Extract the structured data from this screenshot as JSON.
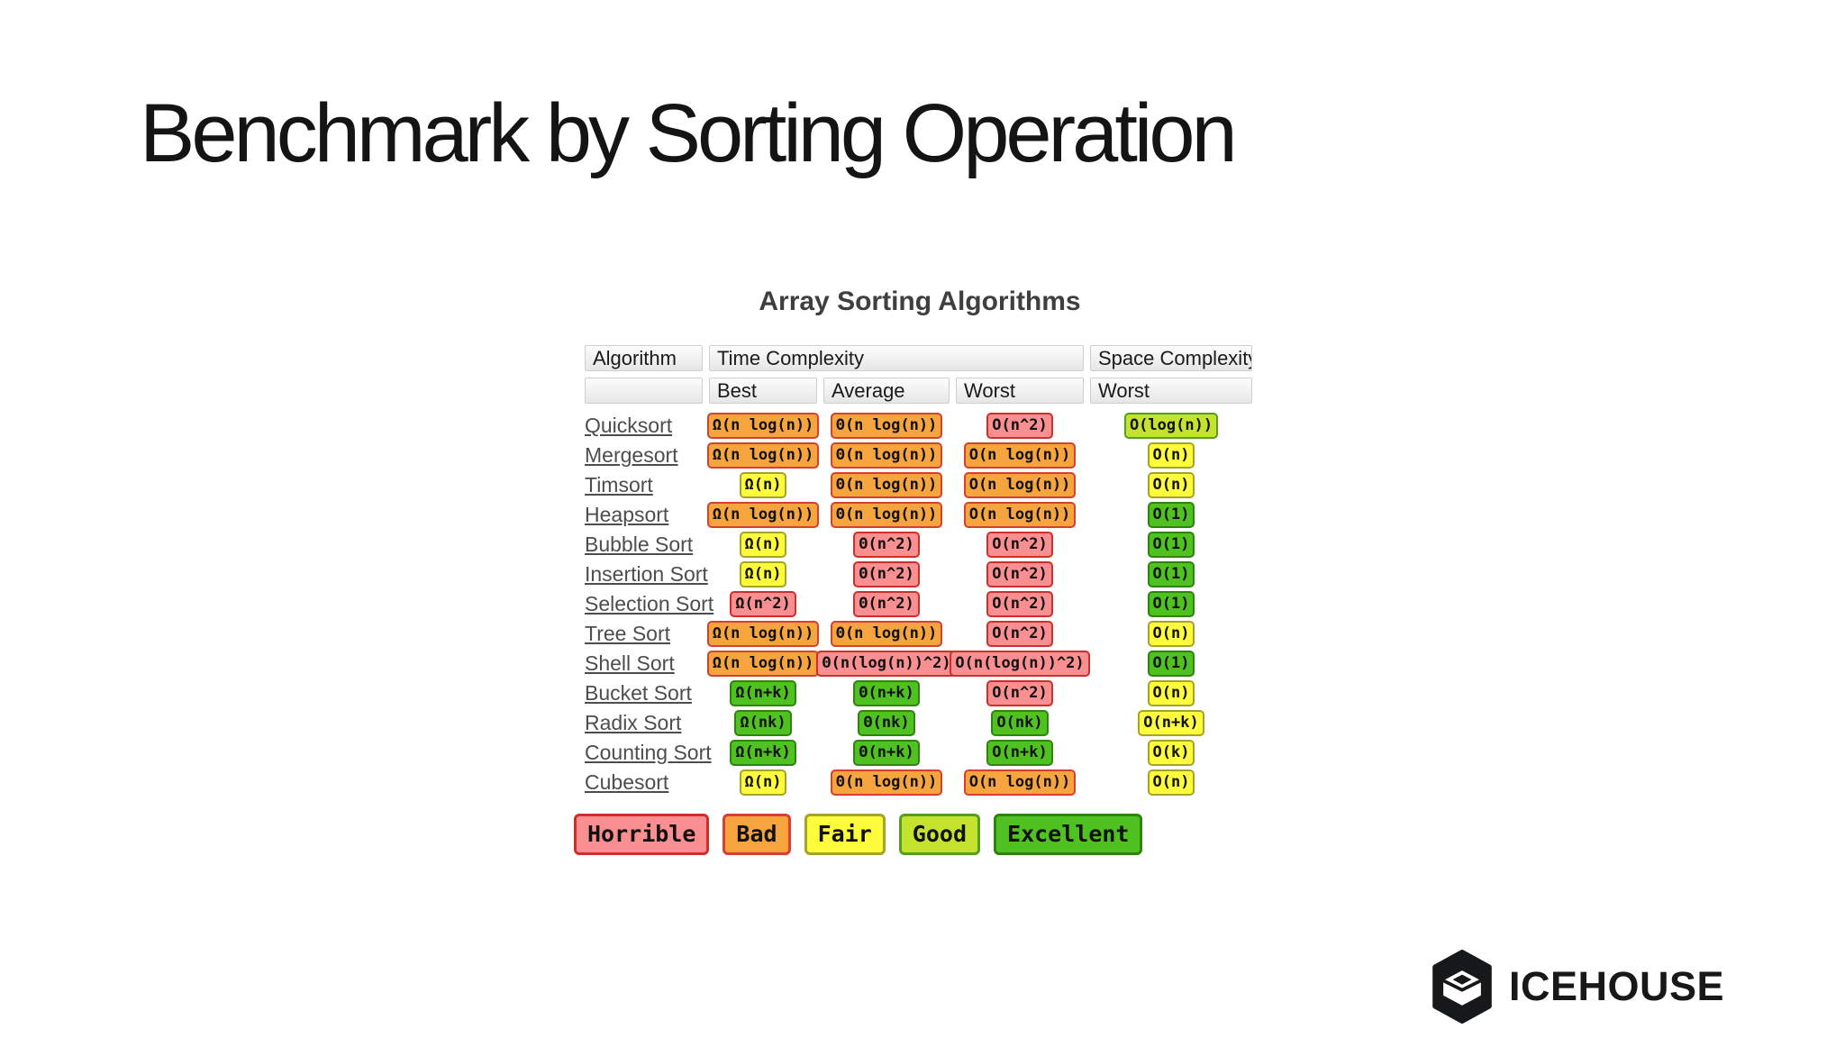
{
  "slide": {
    "title": "Benchmark by Sorting Operation"
  },
  "table": {
    "title": "Array Sorting Algorithms",
    "header": {
      "algorithm": "Algorithm",
      "time_complexity": "Time Complexity",
      "space_complexity": "Space Complexity",
      "best": "Best",
      "average": "Average",
      "worst": "Worst",
      "space_worst": "Worst"
    },
    "rows": [
      {
        "name": "Quicksort",
        "best": {
          "text": "Ω(n log(n))",
          "rating": "bad"
        },
        "average": {
          "text": "Θ(n log(n))",
          "rating": "bad"
        },
        "worst": {
          "text": "O(n^2)",
          "rating": "horrible"
        },
        "space": {
          "text": "O(log(n))",
          "rating": "good"
        }
      },
      {
        "name": "Mergesort",
        "best": {
          "text": "Ω(n log(n))",
          "rating": "bad"
        },
        "average": {
          "text": "Θ(n log(n))",
          "rating": "bad"
        },
        "worst": {
          "text": "O(n log(n))",
          "rating": "bad"
        },
        "space": {
          "text": "O(n)",
          "rating": "fair"
        }
      },
      {
        "name": "Timsort",
        "best": {
          "text": "Ω(n)",
          "rating": "fair"
        },
        "average": {
          "text": "Θ(n log(n))",
          "rating": "bad"
        },
        "worst": {
          "text": "O(n log(n))",
          "rating": "bad"
        },
        "space": {
          "text": "O(n)",
          "rating": "fair"
        }
      },
      {
        "name": "Heapsort",
        "best": {
          "text": "Ω(n log(n))",
          "rating": "bad"
        },
        "average": {
          "text": "Θ(n log(n))",
          "rating": "bad"
        },
        "worst": {
          "text": "O(n log(n))",
          "rating": "bad"
        },
        "space": {
          "text": "O(1)",
          "rating": "excellent"
        }
      },
      {
        "name": "Bubble Sort",
        "best": {
          "text": "Ω(n)",
          "rating": "fair"
        },
        "average": {
          "text": "Θ(n^2)",
          "rating": "horrible"
        },
        "worst": {
          "text": "O(n^2)",
          "rating": "horrible"
        },
        "space": {
          "text": "O(1)",
          "rating": "excellent"
        }
      },
      {
        "name": "Insertion Sort",
        "best": {
          "text": "Ω(n)",
          "rating": "fair"
        },
        "average": {
          "text": "Θ(n^2)",
          "rating": "horrible"
        },
        "worst": {
          "text": "O(n^2)",
          "rating": "horrible"
        },
        "space": {
          "text": "O(1)",
          "rating": "excellent"
        }
      },
      {
        "name": "Selection Sort",
        "best": {
          "text": "Ω(n^2)",
          "rating": "horrible"
        },
        "average": {
          "text": "Θ(n^2)",
          "rating": "horrible"
        },
        "worst": {
          "text": "O(n^2)",
          "rating": "horrible"
        },
        "space": {
          "text": "O(1)",
          "rating": "excellent"
        }
      },
      {
        "name": "Tree Sort",
        "best": {
          "text": "Ω(n log(n))",
          "rating": "bad"
        },
        "average": {
          "text": "Θ(n log(n))",
          "rating": "bad"
        },
        "worst": {
          "text": "O(n^2)",
          "rating": "horrible"
        },
        "space": {
          "text": "O(n)",
          "rating": "fair"
        }
      },
      {
        "name": "Shell Sort",
        "best": {
          "text": "Ω(n log(n))",
          "rating": "bad"
        },
        "average": {
          "text": "Θ(n(log(n))^2)",
          "rating": "horrible"
        },
        "worst": {
          "text": "O(n(log(n))^2)",
          "rating": "horrible"
        },
        "space": {
          "text": "O(1)",
          "rating": "excellent"
        }
      },
      {
        "name": "Bucket Sort",
        "best": {
          "text": "Ω(n+k)",
          "rating": "excellent"
        },
        "average": {
          "text": "Θ(n+k)",
          "rating": "excellent"
        },
        "worst": {
          "text": "O(n^2)",
          "rating": "horrible"
        },
        "space": {
          "text": "O(n)",
          "rating": "fair"
        }
      },
      {
        "name": "Radix Sort",
        "best": {
          "text": "Ω(nk)",
          "rating": "excellent"
        },
        "average": {
          "text": "Θ(nk)",
          "rating": "excellent"
        },
        "worst": {
          "text": "O(nk)",
          "rating": "excellent"
        },
        "space": {
          "text": "O(n+k)",
          "rating": "fair"
        }
      },
      {
        "name": "Counting Sort",
        "best": {
          "text": "Ω(n+k)",
          "rating": "excellent"
        },
        "average": {
          "text": "Θ(n+k)",
          "rating": "excellent"
        },
        "worst": {
          "text": "O(n+k)",
          "rating": "excellent"
        },
        "space": {
          "text": "O(k)",
          "rating": "fair"
        }
      },
      {
        "name": "Cubesort",
        "best": {
          "text": "Ω(n)",
          "rating": "fair"
        },
        "average": {
          "text": "Θ(n log(n))",
          "rating": "bad"
        },
        "worst": {
          "text": "O(n log(n))",
          "rating": "bad"
        },
        "space": {
          "text": "O(n)",
          "rating": "fair"
        }
      }
    ]
  },
  "legend": [
    {
      "label": "Horrible",
      "rating": "horrible"
    },
    {
      "label": "Bad",
      "rating": "bad"
    },
    {
      "label": "Fair",
      "rating": "fair"
    },
    {
      "label": "Good",
      "rating": "good"
    },
    {
      "label": "Excellent",
      "rating": "excellent"
    }
  ],
  "colors": {
    "horrible_bg": "#F98F90",
    "horrible_border": "#D02E2B",
    "bad_bg": "#F6A43D",
    "bad_border": "#D5402F",
    "fair_bg": "#FCFC3D",
    "fair_border": "#A6A426",
    "good_bg": "#C5E32E",
    "good_border": "#53A01E",
    "excellent_bg": "#4FC120",
    "excellent_border": "#2D850E"
  },
  "footer": {
    "brand": "ICEHOUSE"
  }
}
